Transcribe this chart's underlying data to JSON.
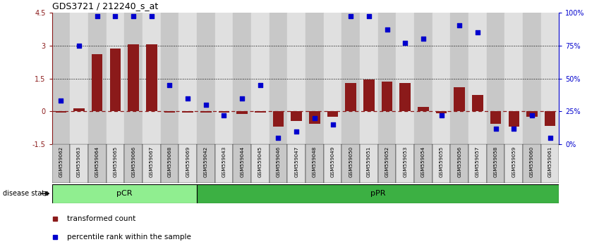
{
  "title": "GDS3721 / 212240_s_at",
  "samples": [
    "GSM559062",
    "GSM559063",
    "GSM559064",
    "GSM559065",
    "GSM559066",
    "GSM559067",
    "GSM559068",
    "GSM559069",
    "GSM559042",
    "GSM559043",
    "GSM559044",
    "GSM559045",
    "GSM559046",
    "GSM559047",
    "GSM559048",
    "GSM559049",
    "GSM559050",
    "GSM559051",
    "GSM559052",
    "GSM559053",
    "GSM559054",
    "GSM559055",
    "GSM559056",
    "GSM559057",
    "GSM559058",
    "GSM559059",
    "GSM559060",
    "GSM559061"
  ],
  "transformed_count": [
    -0.05,
    0.15,
    2.6,
    2.85,
    3.05,
    3.05,
    -0.05,
    -0.05,
    -0.05,
    -0.05,
    -0.1,
    -0.05,
    -0.7,
    -0.45,
    -0.55,
    -0.25,
    1.3,
    1.45,
    1.35,
    1.3,
    0.2,
    -0.08,
    1.1,
    0.75,
    -0.55,
    -0.7,
    -0.25,
    -0.65
  ],
  "percentile_rank": [
    33,
    75,
    97,
    97,
    97,
    97,
    45,
    35,
    30,
    22,
    35,
    45,
    5,
    10,
    20,
    15,
    97,
    97,
    87,
    77,
    80,
    22,
    90,
    85,
    12,
    12,
    22,
    5
  ],
  "pCR_count": 8,
  "pPR_count": 20,
  "ylim": [
    -1.5,
    4.5
  ],
  "bar_color": "#8B1A1A",
  "dot_color": "#0000CD",
  "zero_line_color": "#8B1A1A",
  "hline_yvals": [
    3.0,
    1.5
  ],
  "pCR_color": "#90EE90",
  "pPR_color": "#3CB043",
  "cell_color_odd": "#C8C8C8",
  "cell_color_even": "#E0E0E0"
}
